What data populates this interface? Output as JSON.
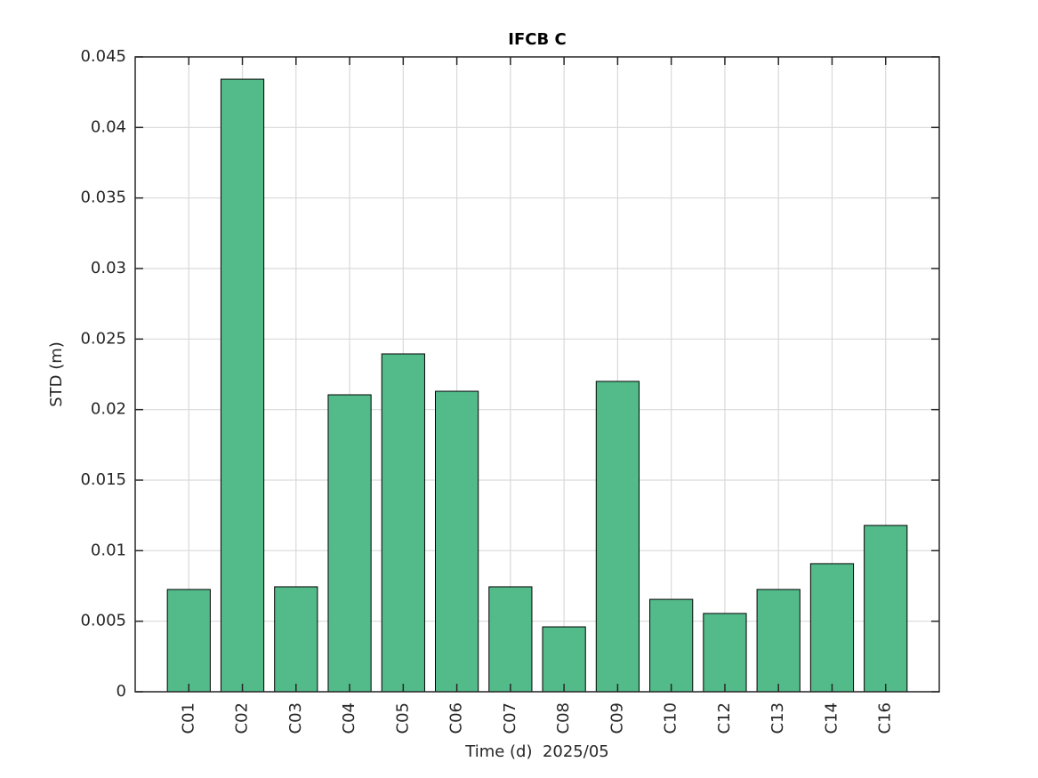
{
  "chart_data": {
    "type": "bar",
    "title": "IFCB C",
    "x_label": "Time (d)  2025/05",
    "y_label": "STD (m)",
    "categories": [
      "C01",
      "C02",
      "C03",
      "C04",
      "C05",
      "C06",
      "C07",
      "C08",
      "C09",
      "C10",
      "C12",
      "C13",
      "C14",
      "C16"
    ],
    "values": [
      0.00725,
      0.04342,
      0.00744,
      0.02105,
      0.02395,
      0.0213,
      0.00744,
      0.0046,
      0.022,
      0.00655,
      0.00555,
      0.00725,
      0.00908,
      0.01179
    ],
    "color": "#53bb8a",
    "ylim": [
      0,
      0.045
    ],
    "yticks": [
      0,
      0.005,
      0.01,
      0.015,
      0.02,
      0.025,
      0.03,
      0.035,
      0.04,
      0.045
    ],
    "grid": true
  }
}
